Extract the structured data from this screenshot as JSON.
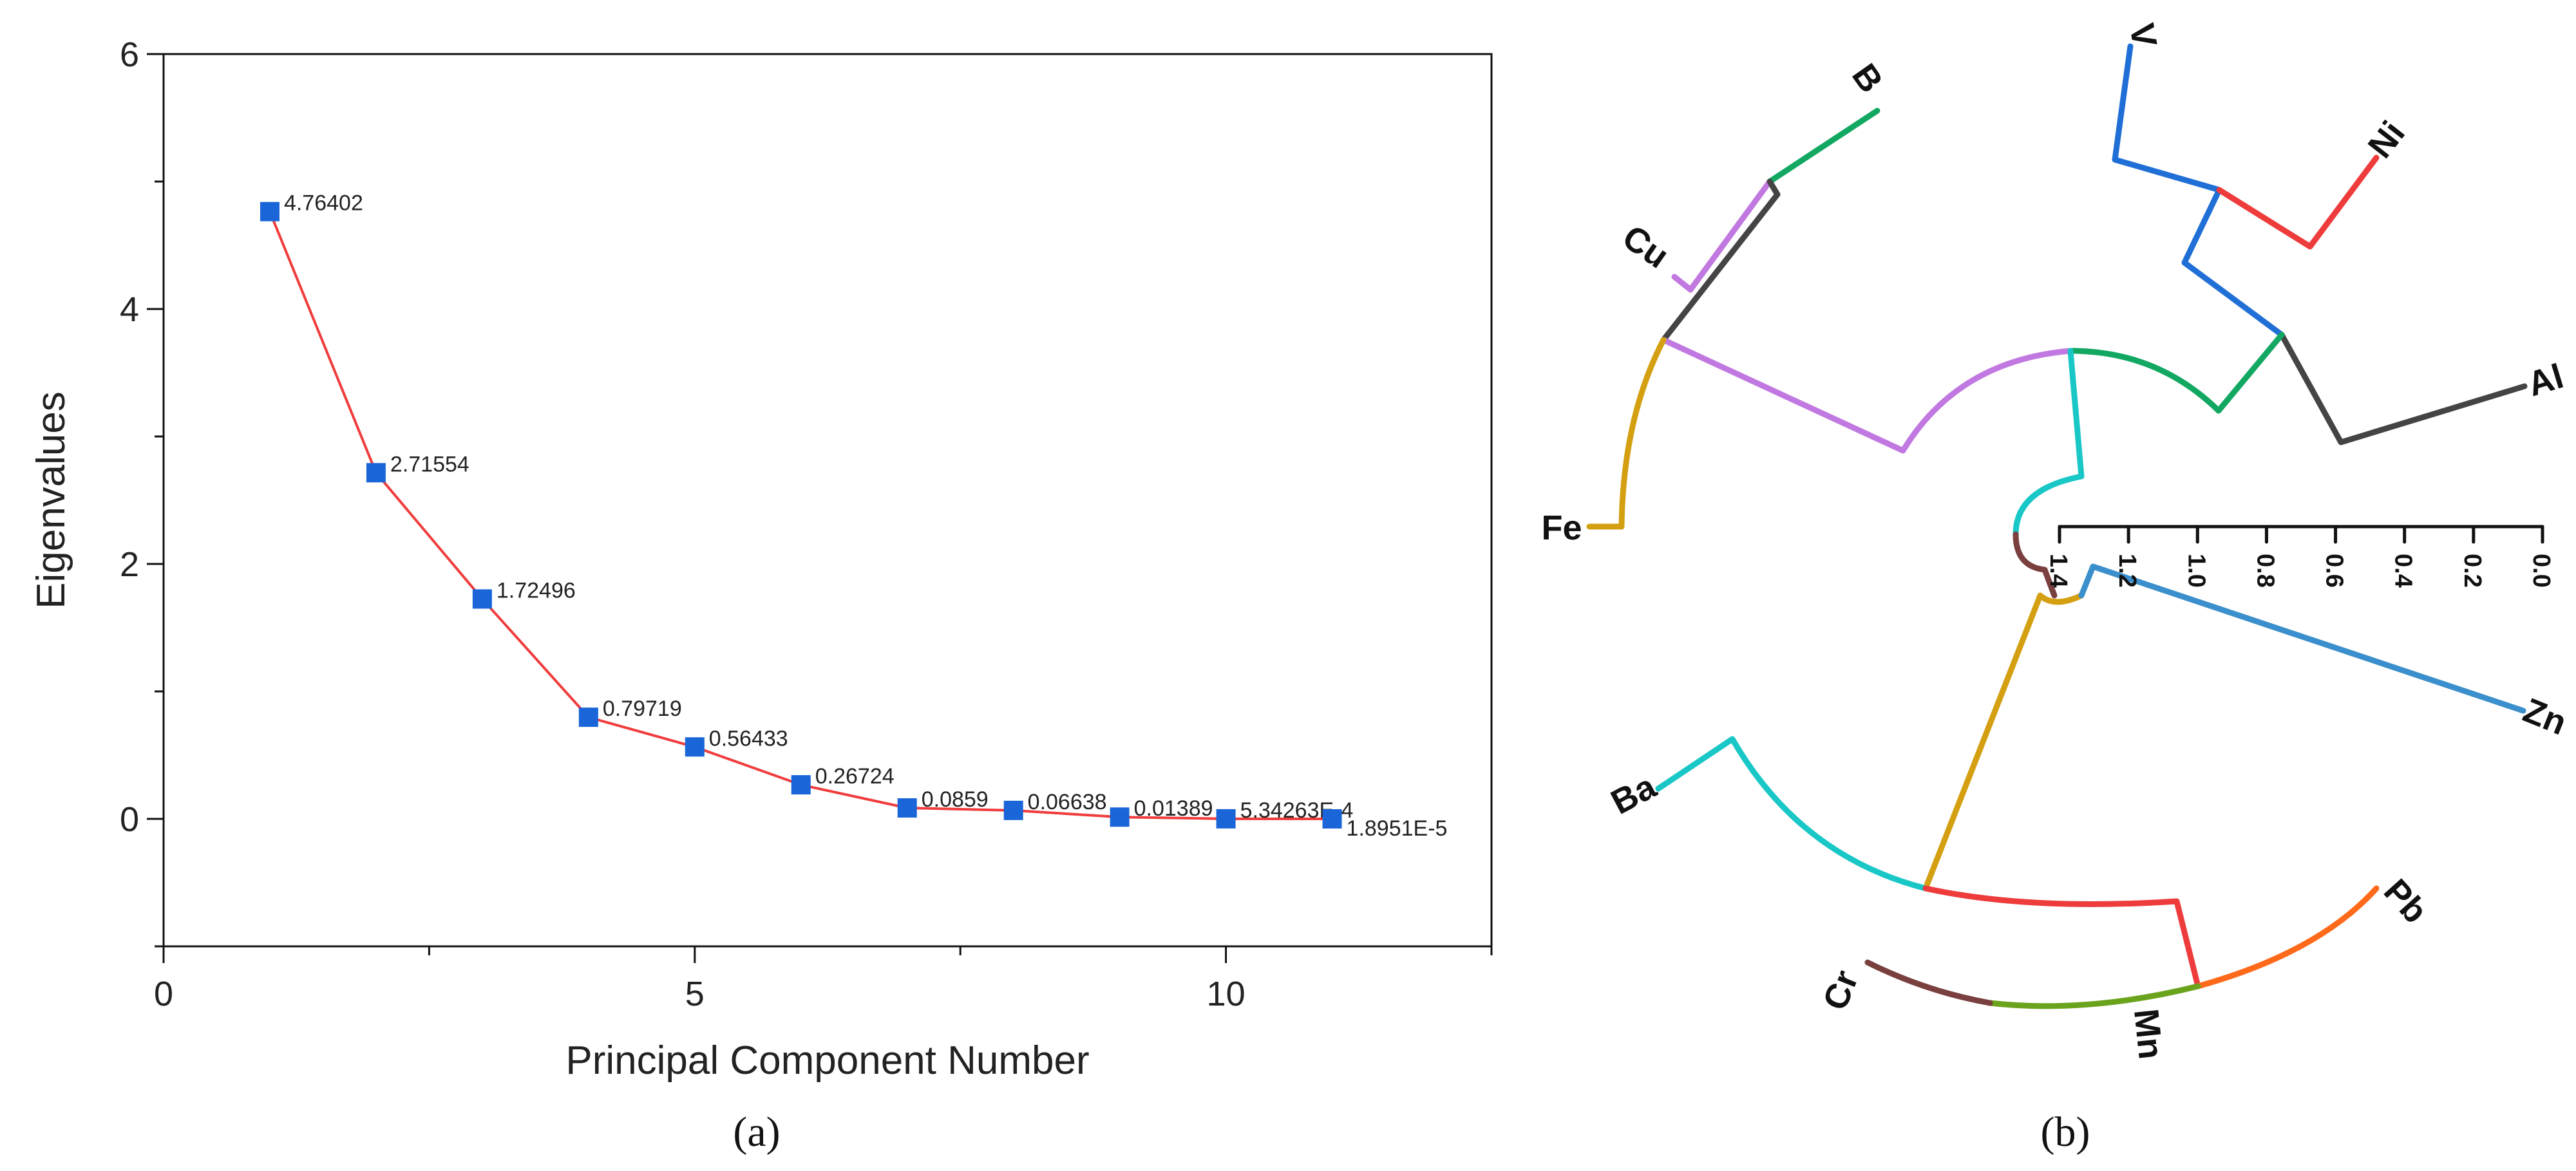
{
  "chart_data": [
    {
      "type": "line",
      "panel_label": "(a)",
      "xlabel": "Principal Component Number",
      "ylabel": "Eigenvalues",
      "xlim": [
        0,
        12.5
      ],
      "ylim": [
        -1,
        6
      ],
      "xticks": [
        0,
        5,
        10
      ],
      "yticks": [
        0,
        2,
        4,
        6
      ],
      "grid": false,
      "line_color": "#f03c3c",
      "marker_color": "#1a66d8",
      "x": [
        1,
        2,
        3,
        4,
        5,
        6,
        7,
        8,
        9,
        10,
        11
      ],
      "y": [
        4.76402,
        2.71554,
        1.72496,
        0.79719,
        0.56433,
        0.26724,
        0.0859,
        0.06638,
        0.01389,
        0.000534263,
        1.8951e-05
      ],
      "point_labels": [
        "4.76402",
        "2.71554",
        "1.72496",
        "0.79719",
        "0.56433",
        "0.26724",
        "0.0859",
        "0.06638",
        "0.01389",
        "5.34263E-4",
        "1.8951E-5"
      ]
    },
    {
      "type": "dendrogram",
      "layout": "circular",
      "panel_label": "(b)",
      "scale_ticks": [
        "1.4",
        "1.2",
        "1.0",
        "0.8",
        "0.6",
        "0.4",
        "0.2",
        "0.0"
      ],
      "leaves": [
        {
          "name": "V",
          "color": "#1f6fd6"
        },
        {
          "name": "Ni",
          "color": "#ee3b3b"
        },
        {
          "name": "Al",
          "color": "#444444"
        },
        {
          "name": "Zn",
          "color": "#3b8fcc"
        },
        {
          "name": "Pb",
          "color": "#ff6a1a"
        },
        {
          "name": "Mn",
          "color": "#6aa31c"
        },
        {
          "name": "Cr",
          "color": "#7a3f3f"
        },
        {
          "name": "Ba",
          "color": "#19c7c7"
        },
        {
          "name": "Fe",
          "color": "#d4a012"
        },
        {
          "name": "Cu",
          "color": "#c178e0"
        },
        {
          "name": "B",
          "color": "#12a862"
        }
      ]
    }
  ]
}
